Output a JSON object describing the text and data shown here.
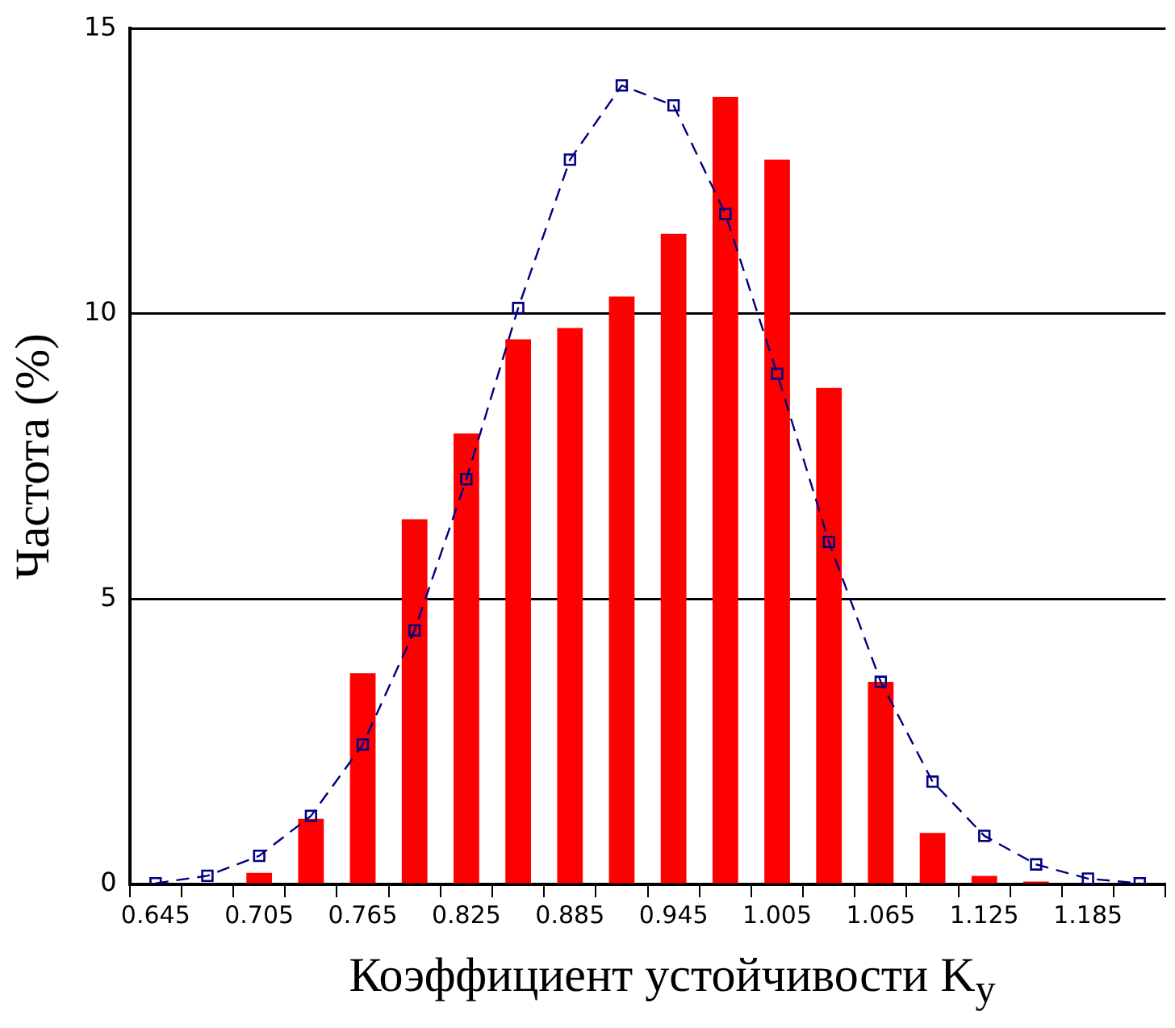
{
  "chart_data": {
    "type": "bar",
    "xlabel": "Коэффициент устойчивости K$_{y}$",
    "ylabel": "Частота (%)",
    "categories": [
      "0.645",
      null,
      "0.705",
      null,
      "0.765",
      null,
      "0.825",
      null,
      "0.885",
      null,
      "0.945",
      null,
      "1.005",
      null,
      "1.065",
      null,
      "1.125",
      null,
      "1.185",
      null
    ],
    "series": [
      {
        "color": "#ff0000",
        "values": [
          0,
          0,
          0.2,
          1.15,
          3.7,
          6.4,
          7.9,
          9.55,
          9.75,
          10.3,
          11.4,
          13.8,
          12.7,
          8.7,
          3.55,
          0.9,
          0.15,
          0.05,
          0,
          0
        ]
      },
      {
        "type": "line",
        "color": "#000080",
        "marker": "square",
        "line_style": "dashed",
        "values": [
          0.02,
          0.15,
          0.5,
          1.2,
          2.45,
          4.45,
          7.1,
          10.1,
          12.7,
          14.0,
          13.65,
          11.75,
          8.95,
          6.0,
          3.55,
          1.8,
          0.85,
          0.35,
          0.1,
          0.02
        ]
      }
    ],
    "ylim": [
      0,
      15
    ],
    "yticks": [
      0,
      5,
      10,
      15
    ],
    "grid": "y",
    "legend": false
  }
}
